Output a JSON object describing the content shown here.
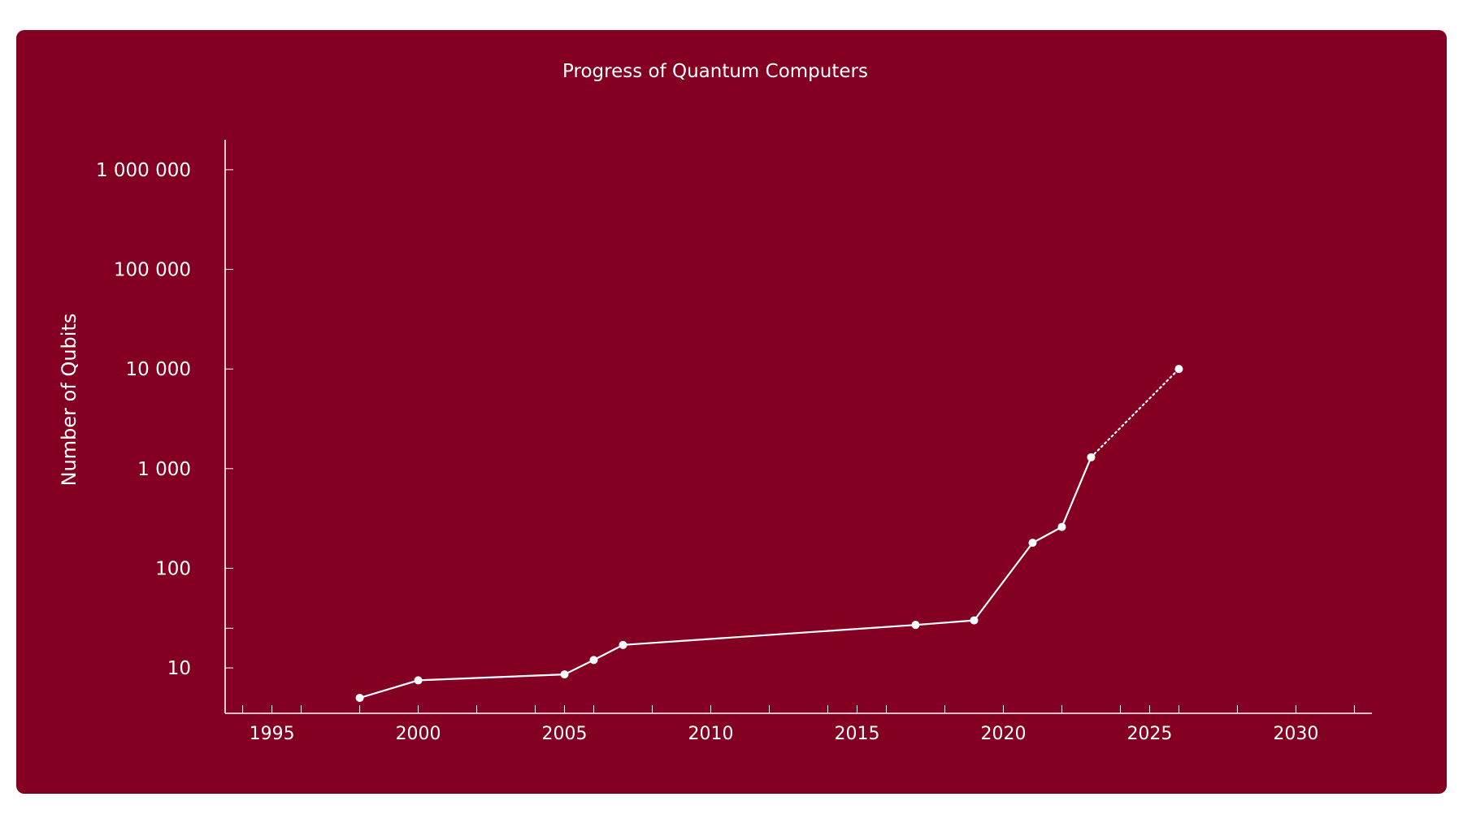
{
  "chart_data": {
    "type": "line",
    "title": "Progress of Quantum Computers",
    "xlabel": "",
    "ylabel": "Number of Qubits",
    "y_scale": "log",
    "xlim": [
      1993.4,
      2032.6
    ],
    "ylim": [
      3.5,
      2000000
    ],
    "x_ticks": [
      1995,
      2000,
      2005,
      2010,
      2015,
      2020,
      2025,
      2030
    ],
    "x_tick_labels": [
      "1995",
      "2000",
      "2005",
      "2010",
      "2015",
      "2020",
      "2025",
      "2030"
    ],
    "y_ticks": [
      10,
      100,
      1000,
      10000,
      100000,
      1000000
    ],
    "y_tick_labels": [
      "10",
      "100",
      "1 000",
      "10 000",
      "100 000",
      "1 000 000"
    ],
    "grid": false,
    "legend": "none",
    "background_color": "#840022",
    "line_color": "#ffffff",
    "series": [
      {
        "style": "solid",
        "x": [
          1998,
          2000,
          2005,
          2006,
          2007,
          2017,
          2019,
          2021,
          2022,
          2023
        ],
        "y": [
          5,
          7.5,
          8.6,
          12,
          17,
          27,
          30,
          180,
          260,
          1300
        ]
      },
      {
        "style": "dotted",
        "x": [
          2023,
          2026
        ],
        "y": [
          1300,
          10000
        ]
      }
    ]
  }
}
